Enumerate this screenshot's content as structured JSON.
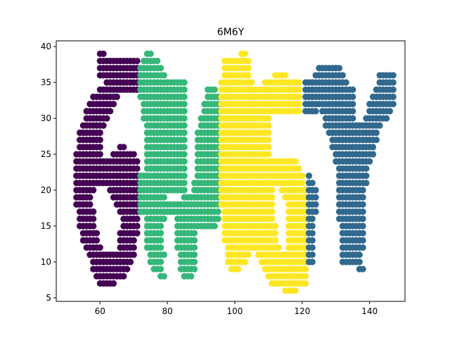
{
  "chart_data": {
    "type": "scatter",
    "title": "6M6Y",
    "xlabel": "",
    "ylabel": "",
    "xlim": [
      47,
      150.5
    ],
    "ylim": [
      4.5,
      40.8
    ],
    "xticks": [
      60,
      80,
      100,
      120,
      140
    ],
    "yticks": [
      5,
      10,
      15,
      20,
      25,
      30,
      35,
      40
    ],
    "grid": false,
    "legend": "none",
    "colors": [
      "#440154",
      "#35b779",
      "#fde725",
      "#31688e"
    ],
    "series": [
      {
        "color": "#440154",
        "runs": [
          [
            39,
            60,
            61
          ],
          [
            38,
            60,
            71
          ],
          [
            37,
            60,
            71
          ],
          [
            36,
            60,
            71
          ],
          [
            35,
            62,
            71
          ],
          [
            34,
            60,
            71
          ],
          [
            33,
            58,
            65
          ],
          [
            32,
            57,
            64
          ],
          [
            31,
            56,
            63
          ],
          [
            30,
            56,
            62
          ],
          [
            29,
            55,
            61
          ],
          [
            28,
            54,
            60
          ],
          [
            27,
            54,
            60
          ],
          [
            26,
            54,
            60
          ],
          [
            26,
            66,
            67
          ],
          [
            25,
            53,
            60
          ],
          [
            25,
            64,
            70
          ],
          [
            24,
            53,
            71
          ],
          [
            23,
            53,
            71
          ],
          [
            22,
            53,
            71
          ],
          [
            21,
            53,
            71
          ],
          [
            20,
            53,
            58
          ],
          [
            20,
            63,
            71
          ],
          [
            19,
            53,
            57
          ],
          [
            19,
            64,
            71
          ],
          [
            18,
            53,
            57
          ],
          [
            18,
            65,
            71
          ],
          [
            17,
            54,
            58
          ],
          [
            17,
            66,
            71
          ],
          [
            16,
            54,
            58
          ],
          [
            16,
            67,
            71
          ],
          [
            15,
            54,
            58
          ],
          [
            15,
            67,
            71
          ],
          [
            14,
            55,
            59
          ],
          [
            14,
            66,
            71
          ],
          [
            13,
            55,
            59
          ],
          [
            13,
            66,
            70
          ],
          [
            12,
            56,
            60
          ],
          [
            12,
            66,
            70
          ],
          [
            11,
            57,
            70
          ],
          [
            10,
            58,
            69
          ],
          [
            9,
            58,
            68
          ],
          [
            8,
            59,
            67
          ],
          [
            7,
            60,
            64
          ]
        ]
      },
      {
        "color": "#35b779",
        "runs": [
          [
            39,
            74,
            75
          ],
          [
            38,
            73,
            77
          ],
          [
            37,
            72,
            78
          ],
          [
            36,
            72,
            79
          ],
          [
            35,
            72,
            85
          ],
          [
            34,
            72,
            85
          ],
          [
            34,
            92,
            94
          ],
          [
            33,
            72,
            85
          ],
          [
            33,
            92,
            95
          ],
          [
            32,
            73,
            85
          ],
          [
            32,
            91,
            95
          ],
          [
            31,
            73,
            85
          ],
          [
            31,
            91,
            95
          ],
          [
            30,
            73,
            85
          ],
          [
            30,
            90,
            95
          ],
          [
            29,
            74,
            85
          ],
          [
            29,
            90,
            95
          ],
          [
            28,
            74,
            85
          ],
          [
            28,
            89,
            95
          ],
          [
            27,
            74,
            85
          ],
          [
            27,
            89,
            95
          ],
          [
            26,
            74,
            85
          ],
          [
            26,
            89,
            95
          ],
          [
            25,
            74,
            85
          ],
          [
            25,
            89,
            95
          ],
          [
            24,
            74,
            85
          ],
          [
            24,
            89,
            95
          ],
          [
            23,
            74,
            85
          ],
          [
            23,
            89,
            95
          ],
          [
            22,
            72,
            85
          ],
          [
            22,
            89,
            95
          ],
          [
            21,
            72,
            85
          ],
          [
            21,
            88,
            95
          ],
          [
            20,
            72,
            85
          ],
          [
            20,
            88,
            95
          ],
          [
            19,
            72,
            79
          ],
          [
            19,
            85,
            95
          ],
          [
            18,
            72,
            95
          ],
          [
            17,
            72,
            95
          ],
          [
            16,
            74,
            79
          ],
          [
            16,
            83,
            95
          ],
          [
            15,
            74,
            78
          ],
          [
            15,
            83,
            94
          ],
          [
            14,
            74,
            78
          ],
          [
            14,
            83,
            88
          ],
          [
            13,
            74,
            78
          ],
          [
            13,
            83,
            88
          ],
          [
            12,
            74,
            78
          ],
          [
            12,
            83,
            88
          ],
          [
            11,
            75,
            79
          ],
          [
            11,
            84,
            88
          ],
          [
            10,
            75,
            78
          ],
          [
            10,
            84,
            88
          ],
          [
            9,
            76,
            78
          ],
          [
            9,
            84,
            88
          ],
          [
            8,
            78,
            79
          ],
          [
            8,
            85,
            87
          ]
        ]
      },
      {
        "color": "#fde725",
        "runs": [
          [
            39,
            102,
            103
          ],
          [
            38,
            97,
            104
          ],
          [
            37,
            97,
            104
          ],
          [
            36,
            97,
            104
          ],
          [
            36,
            112,
            113
          ],
          [
            36,
            114,
            115
          ],
          [
            35,
            96,
            105
          ],
          [
            35,
            109,
            119
          ],
          [
            34,
            96,
            119
          ],
          [
            33,
            96,
            119
          ],
          [
            32,
            96,
            119
          ],
          [
            31,
            96,
            119
          ],
          [
            30,
            96,
            110
          ],
          [
            29,
            96,
            110
          ],
          [
            28,
            96,
            110
          ],
          [
            27,
            96,
            110
          ],
          [
            26,
            96,
            110
          ],
          [
            25,
            96,
            110
          ],
          [
            24,
            96,
            118
          ],
          [
            23,
            96,
            119
          ],
          [
            22,
            96,
            120
          ],
          [
            21,
            96,
            120
          ],
          [
            20,
            96,
            111
          ],
          [
            20,
            114,
            121
          ],
          [
            19,
            96,
            111
          ],
          [
            19,
            115,
            121
          ],
          [
            18,
            96,
            111
          ],
          [
            18,
            116,
            121
          ],
          [
            17,
            97,
            111
          ],
          [
            17,
            116,
            121
          ],
          [
            16,
            97,
            111
          ],
          [
            16,
            116,
            121
          ],
          [
            15,
            97,
            112
          ],
          [
            15,
            116,
            121
          ],
          [
            14,
            97,
            112
          ],
          [
            14,
            116,
            121
          ],
          [
            13,
            97,
            112
          ],
          [
            13,
            116,
            121
          ],
          [
            12,
            98,
            113
          ],
          [
            12,
            116,
            121
          ],
          [
            11,
            98,
            104
          ],
          [
            11,
            107,
            121
          ],
          [
            10,
            98,
            103
          ],
          [
            10,
            108,
            121
          ],
          [
            9,
            99,
            101
          ],
          [
            9,
            109,
            121
          ],
          [
            8,
            110,
            121
          ],
          [
            7,
            111,
            121
          ],
          [
            6,
            115,
            118
          ]
        ]
      },
      {
        "color": "#31688e",
        "runs": [
          [
            37,
            125,
            131
          ],
          [
            36,
            124,
            132
          ],
          [
            36,
            143,
            147
          ],
          [
            35,
            121,
            133
          ],
          [
            35,
            143,
            147
          ],
          [
            34,
            121,
            135
          ],
          [
            34,
            142,
            147
          ],
          [
            33,
            121,
            135
          ],
          [
            33,
            141,
            147
          ],
          [
            32,
            121,
            135
          ],
          [
            32,
            140,
            147
          ],
          [
            31,
            121,
            124
          ],
          [
            31,
            126,
            135
          ],
          [
            31,
            140,
            146
          ],
          [
            30,
            127,
            135
          ],
          [
            30,
            139,
            145
          ],
          [
            29,
            127,
            143
          ],
          [
            28,
            128,
            142
          ],
          [
            27,
            129,
            142
          ],
          [
            26,
            129,
            141
          ],
          [
            25,
            130,
            141
          ],
          [
            24,
            130,
            140
          ],
          [
            23,
            131,
            139
          ],
          [
            22,
            122,
            122
          ],
          [
            22,
            131,
            139
          ],
          [
            21,
            122,
            123
          ],
          [
            21,
            131,
            139
          ],
          [
            20,
            122,
            124
          ],
          [
            20,
            131,
            138
          ],
          [
            19,
            122,
            124
          ],
          [
            19,
            131,
            138
          ],
          [
            18,
            122,
            124
          ],
          [
            18,
            131,
            138
          ],
          [
            17,
            122,
            124
          ],
          [
            17,
            131,
            138
          ],
          [
            16,
            122,
            123
          ],
          [
            16,
            131,
            138
          ],
          [
            15,
            122,
            123
          ],
          [
            15,
            132,
            138
          ],
          [
            14,
            122,
            123
          ],
          [
            14,
            132,
            138
          ],
          [
            13,
            122,
            123
          ],
          [
            13,
            132,
            138
          ],
          [
            12,
            122,
            123
          ],
          [
            12,
            132,
            138
          ],
          [
            11,
            122,
            123
          ],
          [
            11,
            132,
            137
          ],
          [
            10,
            122,
            123
          ],
          [
            10,
            132,
            137
          ],
          [
            9,
            137,
            138
          ]
        ]
      }
    ]
  }
}
